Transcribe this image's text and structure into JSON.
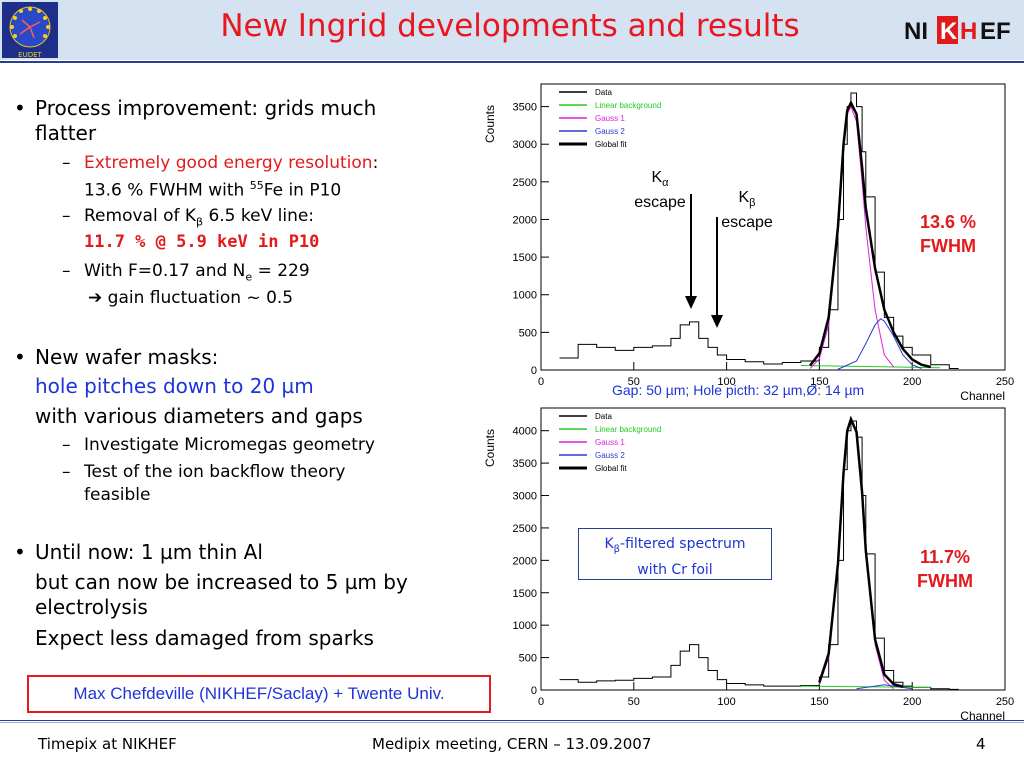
{
  "header": {
    "title": "New Ingrid developments and results",
    "left_logo_text": "EUDET",
    "right_logo": [
      "NI",
      "K",
      "H",
      "EF"
    ]
  },
  "bullets": {
    "b1": {
      "line1": "Process improvement: grids much",
      "line2": "flatter",
      "s1a_red": "Extremely good energy resolution",
      "s1a_colon": ":",
      "s1b_pre": "13.6 % FWHM with ",
      "s1b_sup": "55",
      "s1b_post": "Fe in P10",
      "s2_pre": "Removal of K",
      "s2_sub": "β",
      "s2_post": " 6.5 keV line:",
      "s2_red": "11.7 % @ 5.9 keV in P10",
      "s3_pre": "With F=0.17 and N",
      "s3_sub": "e",
      "s3_post": " = 229",
      "s3_arrow": "➔",
      "s3b": " gain fluctuation ~ 0.5"
    },
    "b2": {
      "line1": "New wafer masks:",
      "line2_blue": "hole pitches down to 20 µm",
      "line3": "with various diameters and gaps",
      "s1": "Investigate Micromegas geometry",
      "s2a": "Test of the ion backflow theory",
      "s2b": "feasible"
    },
    "b3": {
      "line1": "Until now: 1 µm thin Al",
      "line2": "but can now be increased to 5 µm by",
      "line3": "electrolysis",
      "line4": "Expect less damaged from sparks"
    },
    "bullet_char": "•",
    "dash_char": "–"
  },
  "credit": "Max Chefdeville (NIKHEF/Saclay) + Twente Univ.",
  "footer": {
    "left": "Timepix at NIKHEF",
    "center": "Medipix meeting, CERN – 13.09.2007",
    "page": "4"
  },
  "annotations": {
    "ka_sym": "K",
    "ka_sub": "α",
    "ka_word": "escape",
    "kb_sym": "K",
    "kb_sub": "β",
    "kb_word": "escape",
    "top_result_1": "13.6 %",
    "top_result_2": "FWHM",
    "gap_caption": "Gap: 50 µm; Hole picth: 32 µm,Ø: 14 µm",
    "kb_filter_sym": "K",
    "kb_filter_sub": "β",
    "kb_filter_post": "-filtered spectrum",
    "kb_filter_line2": "with Cr foil",
    "bottom_result_1": "11.7%",
    "bottom_result_2": "FWHM"
  },
  "colors": {
    "title_red": "#e8171f",
    "accent_blue": "#1d34d6",
    "data": "#000000",
    "linear_background": "#22cc22",
    "gauss1": "#e020e0",
    "gauss2": "#2a3bd6",
    "global_fit": "#000000"
  },
  "chart_data": [
    {
      "type": "line",
      "ylabel": "Counts",
      "xlabel": "Channel",
      "xlim": [
        0,
        250
      ],
      "ylim": [
        0,
        3800
      ],
      "x_ticks": [
        0,
        50,
        100,
        150,
        200,
        250
      ],
      "y_ticks": [
        0,
        500,
        1000,
        1500,
        2000,
        2500,
        3000,
        3500
      ],
      "legend": [
        "Data",
        "Linear background",
        "Gauss 1",
        "Gauss 2",
        "Global fit"
      ],
      "legend_position": "top-left",
      "series": [
        {
          "name": "Data",
          "x": [
            10,
            20,
            30,
            40,
            50,
            60,
            70,
            75,
            80,
            85,
            90,
            95,
            100,
            110,
            120,
            130,
            140,
            150,
            155,
            160,
            163,
            165,
            167,
            170,
            173,
            175,
            180,
            185,
            190,
            195,
            200,
            210,
            220
          ],
          "values": [
            160,
            340,
            300,
            260,
            300,
            320,
            420,
            600,
            640,
            420,
            300,
            200,
            140,
            110,
            80,
            100,
            120,
            300,
            800,
            2000,
            3000,
            3500,
            3680,
            3500,
            2900,
            2300,
            1300,
            700,
            450,
            300,
            200,
            70,
            20
          ]
        },
        {
          "name": "Linear background",
          "x": [
            140,
            215
          ],
          "values": [
            60,
            30
          ]
        },
        {
          "name": "Gauss 1",
          "x": [
            145,
            150,
            155,
            160,
            163,
            165,
            167,
            170,
            173,
            175,
            180,
            185,
            190
          ],
          "values": [
            20,
            150,
            600,
            1800,
            2900,
            3400,
            3500,
            3300,
            2500,
            1900,
            800,
            200,
            40
          ]
        },
        {
          "name": "Gauss 2",
          "x": [
            160,
            170,
            175,
            180,
            183,
            185,
            190,
            195,
            200,
            205
          ],
          "values": [
            10,
            120,
            350,
            600,
            680,
            650,
            450,
            200,
            70,
            20
          ]
        },
        {
          "name": "Global fit",
          "x": [
            145,
            150,
            155,
            160,
            163,
            165,
            167,
            170,
            173,
            175,
            180,
            185,
            190,
            195,
            200,
            205,
            210
          ],
          "values": [
            60,
            220,
            700,
            1900,
            3000,
            3450,
            3550,
            3400,
            2700,
            2150,
            1350,
            800,
            500,
            280,
            140,
            70,
            40
          ]
        }
      ]
    },
    {
      "type": "line",
      "ylabel": "Counts",
      "xlabel": "Channel",
      "xlim": [
        0,
        250
      ],
      "ylim": [
        0,
        4350
      ],
      "x_ticks": [
        0,
        50,
        100,
        150,
        200,
        250
      ],
      "y_ticks": [
        0,
        500,
        1000,
        1500,
        2000,
        2500,
        3000,
        3500,
        4000
      ],
      "legend": [
        "Data",
        "Linear background",
        "Gauss 1",
        "Gauss 2",
        "Global fit"
      ],
      "legend_position": "top-left",
      "series": [
        {
          "name": "Data",
          "x": [
            10,
            20,
            30,
            40,
            50,
            60,
            70,
            75,
            80,
            85,
            90,
            95,
            100,
            110,
            120,
            130,
            140,
            150,
            155,
            160,
            163,
            165,
            167,
            170,
            173,
            175,
            180,
            185,
            190,
            195,
            200,
            210,
            220
          ],
          "values": [
            160,
            120,
            140,
            150,
            180,
            200,
            380,
            600,
            700,
            500,
            300,
            160,
            100,
            80,
            60,
            60,
            70,
            200,
            700,
            2000,
            3400,
            4000,
            4150,
            3900,
            3000,
            2100,
            800,
            300,
            120,
            60,
            40,
            20,
            10
          ]
        },
        {
          "name": "Linear background",
          "x": [
            140,
            210
          ],
          "values": [
            60,
            40
          ]
        },
        {
          "name": "Gauss 1",
          "x": [
            150,
            155,
            160,
            163,
            165,
            167,
            170,
            173,
            175,
            180,
            185,
            190
          ],
          "values": [
            80,
            500,
            1900,
            3300,
            3950,
            4150,
            3950,
            3000,
            2100,
            700,
            150,
            20
          ]
        },
        {
          "name": "Gauss 2",
          "x": [
            170,
            180,
            185,
            190,
            200
          ],
          "values": [
            20,
            60,
            80,
            60,
            20
          ]
        },
        {
          "name": "Global fit",
          "x": [
            150,
            155,
            160,
            163,
            165,
            167,
            170,
            173,
            175,
            180,
            185,
            190,
            195
          ],
          "values": [
            120,
            560,
            1950,
            3350,
            4000,
            4180,
            3980,
            3050,
            2150,
            780,
            240,
            90,
            50
          ]
        }
      ]
    }
  ]
}
